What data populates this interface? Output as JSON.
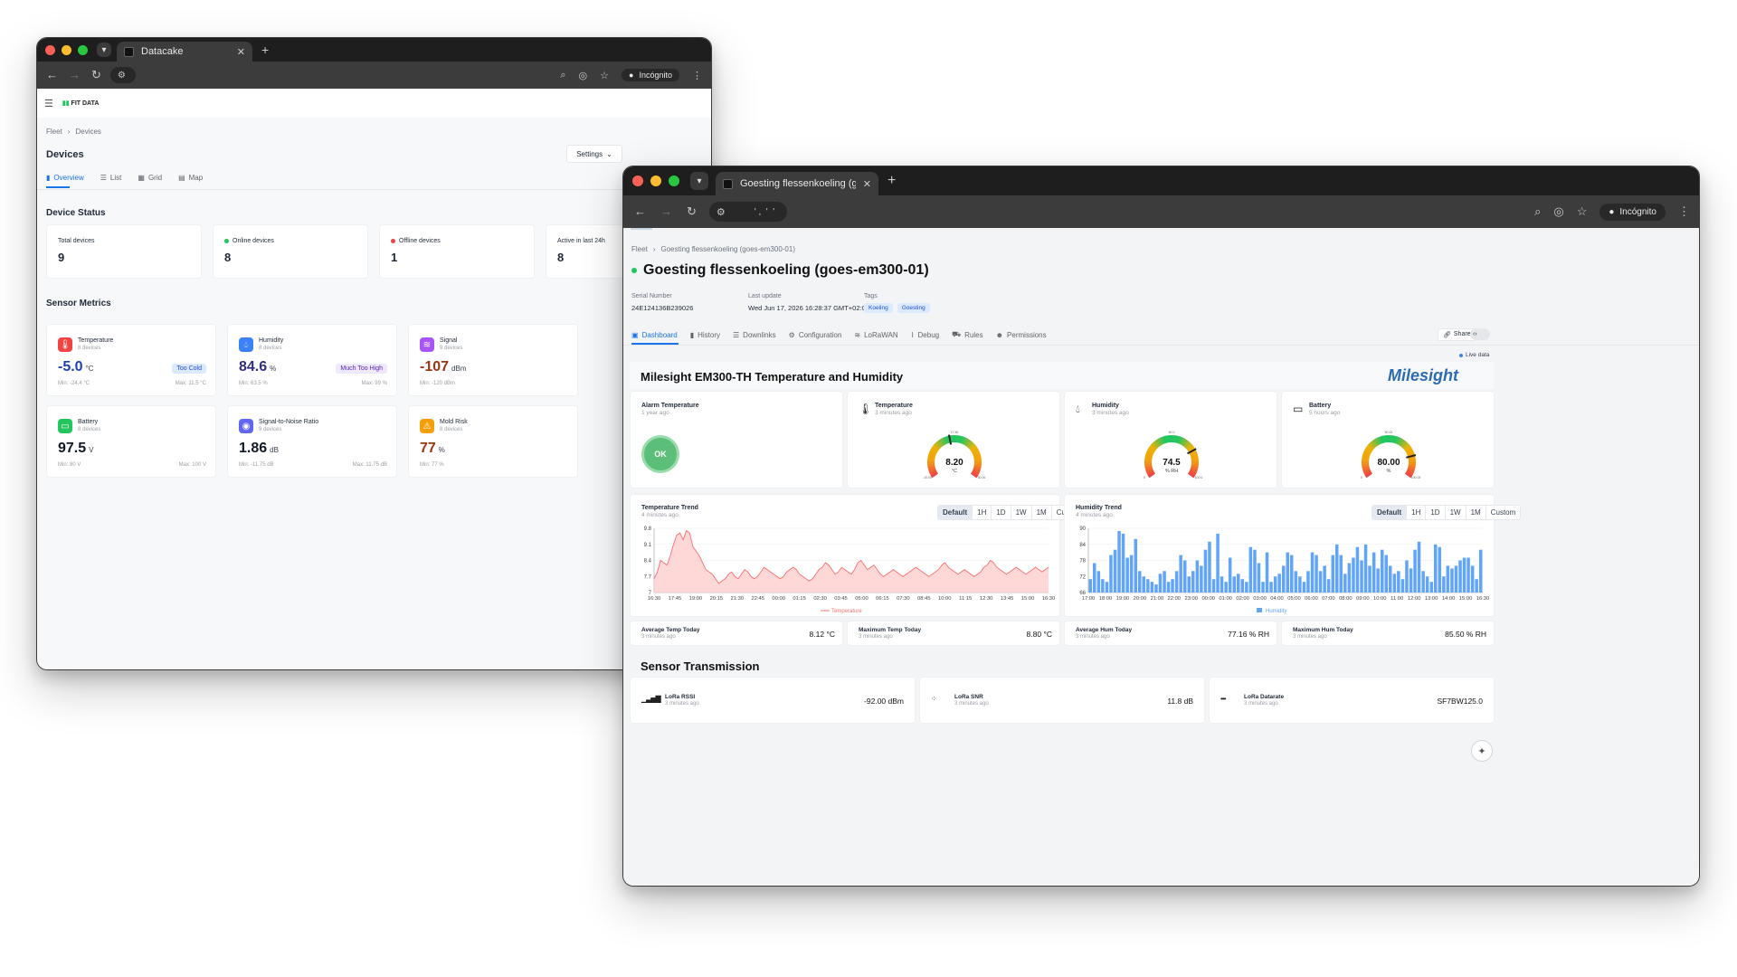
{
  "win1": {
    "tab_title": "Datacake",
    "incognito": "Incógnito",
    "brand": "FIT DATA",
    "breadcrumb": [
      "Fleet",
      "Devices"
    ],
    "page_title": "Devices",
    "settings_label": "Settings",
    "tabs": [
      "Overview",
      "List",
      "Grid",
      "Map"
    ],
    "device_status_title": "Device Status",
    "status": [
      {
        "label": "Total devices",
        "value": "9"
      },
      {
        "label": "Online devices",
        "value": "8"
      },
      {
        "label": "Offline devices",
        "value": "1"
      },
      {
        "label": "Active in last 24h",
        "value": "8"
      }
    ],
    "sensor_metrics_title": "Sensor Metrics",
    "metrics": [
      {
        "name": "Temperature",
        "devices": "8 devices",
        "value": "-5.0",
        "unit": "°C",
        "min": "Min: -24.4 °C",
        "max": "Max: 11.5 °C",
        "badge": "Too Cold",
        "color": "#ef4444",
        "value_color": "#1e40af",
        "badge_bg": "#dbeafe",
        "badge_fg": "#1d4ed8",
        "icon": "thermometer-icon"
      },
      {
        "name": "Humidity",
        "devices": "8 devices",
        "value": "84.6",
        "unit": "%",
        "min": "Min: 63.5 %",
        "max": "Max: 99 %",
        "badge": "Much Too High",
        "color": "#3b82f6",
        "value_color": "#312e81",
        "badge_bg": "#ede9fe",
        "badge_fg": "#5b21b6",
        "icon": "droplet-icon"
      },
      {
        "name": "Signal",
        "devices": "9 devices",
        "value": "-107",
        "unit": "dBm",
        "min": "Min: -120 dBm",
        "max": "",
        "badge": "",
        "color": "#a855f7",
        "value_color": "#9a3412",
        "icon": "wifi-icon"
      },
      {
        "name": "Battery",
        "devices": "8 devices",
        "value": "97.5",
        "unit": "V",
        "min": "Min: 80 V",
        "max": "Max: 100 V",
        "badge": "",
        "color": "#22c55e",
        "value_color": "#111827",
        "icon": "battery-icon"
      },
      {
        "name": "Signal-to-Noise Ratio",
        "devices": "9 devices",
        "value": "1.86",
        "unit": "dB",
        "min": "Min: -11.75 dB",
        "max": "Max: 11.75 dB",
        "badge": "",
        "color": "#6366f1",
        "value_color": "#111827",
        "icon": "radio-icon"
      },
      {
        "name": "Mold Risk",
        "devices": "8 devices",
        "value": "77",
        "unit": "%",
        "min": "Min: 77 %",
        "max": "",
        "badge": "",
        "color": "#f59e0b",
        "value_color": "#9a3412",
        "icon": "warning-icon"
      }
    ]
  },
  "win2": {
    "tab_title": "Goesting flessenkoeling (goes-em300-01)",
    "incognito": "Incógnito",
    "address_text": "' ,  '  '",
    "breadcrumb": [
      "Fleet",
      "Goesting flessenkoeling (goes-em300-01)"
    ],
    "device_title": "Goesting flessenkoeling (goes-em300-01)",
    "serial_label": "Serial Number",
    "serial_value": "24E124136B239026",
    "update_label": "Last update",
    "update_value": "Wed Jun 17, 2026 16:28:37 GMT+02:00",
    "tags_label": "Tags",
    "tags": [
      "Koeling",
      "Goesting"
    ],
    "tabs": [
      "Dashboard",
      "History",
      "Downlinks",
      "Configuration",
      "LoRaWAN",
      "Debug",
      "Rules",
      "Permissions"
    ],
    "share": "Share",
    "live": "Live data",
    "section_title": "Milesight EM300-TH Temperature and Humidity",
    "logo": "Milesight",
    "alarm": {
      "title": "Alarm Temperature",
      "time": "1 year ago",
      "value": "OK"
    },
    "gauges": [
      {
        "title": "Temperature",
        "time": "3 minutes ago",
        "value": "8.20",
        "unit": "°C",
        "min": "-10.00",
        "max": "30.00",
        "top": "17.50",
        "fraction": 0.455,
        "icon": "thermometer-icon"
      },
      {
        "title": "Humidity",
        "time": "3 minutes ago",
        "value": "74.5",
        "unit": "% RH",
        "min": "0",
        "max": "100.0",
        "top": "50.0",
        "fraction": 0.745,
        "icon": "droplet-icon"
      },
      {
        "title": "Battery",
        "time": "5 hours ago",
        "value": "80.00",
        "unit": "%",
        "min": "0",
        "max": "100.00",
        "top": "50.00",
        "fraction": 0.8,
        "icon": "battery-icon"
      }
    ],
    "range_buttons": [
      "Default",
      "1H",
      "1D",
      "1W",
      "1M",
      "Custom"
    ],
    "stats": [
      {
        "title": "Average Temp Today",
        "time": "3 minutes ago",
        "value": "8.12 °C"
      },
      {
        "title": "Maximum Temp Today",
        "time": "3 minutes ago",
        "value": "8.80 °C"
      },
      {
        "title": "Average Hum Today",
        "time": "3 minutes ago",
        "value": "77.16 % RH"
      },
      {
        "title": "Maximum Hum Today",
        "time": "3 minutes ago",
        "value": "85.50 % RH"
      }
    ],
    "transmission_title": "Sensor Transmission",
    "transmission": [
      {
        "title": "LoRa RSSI",
        "time": "3 minutes ago",
        "value": "-92.00 dBm",
        "icon": "signal-bars-icon"
      },
      {
        "title": "LoRa SNR",
        "time": "3 minutes ago",
        "value": "11.8 dB",
        "icon": "spinner-icon"
      },
      {
        "title": "LoRa Datarate",
        "time": "3 minutes ago",
        "value": "SF7BW125.0",
        "icon": "ellipsis-icon"
      }
    ]
  },
  "chart_data": [
    {
      "type": "area",
      "title": "Temperature Trend",
      "subtitle": "4 minutes ago",
      "series": [
        {
          "name": "Temperature",
          "color": "#f87171",
          "values": [
            7.6,
            7.9,
            8.4,
            8.3,
            8.2,
            8.6,
            9.1,
            9.5,
            9.6,
            9.3,
            9.7,
            9.6,
            9.0,
            8.8,
            8.6,
            8.3,
            8.0,
            7.9,
            7.8,
            7.6,
            7.4,
            7.5,
            7.6,
            7.8,
            7.9,
            7.7,
            7.6,
            7.8,
            8.0,
            7.9,
            7.7,
            7.6,
            7.7,
            7.9,
            8.1,
            8.0,
            7.9,
            7.8,
            7.7,
            7.6,
            7.7,
            7.9,
            8.0,
            8.1,
            8.0,
            7.8,
            7.7,
            7.6,
            7.5,
            7.6,
            7.8,
            8.0,
            8.1,
            8.3,
            8.2,
            8.0,
            7.8,
            7.9,
            8.1,
            8.0,
            7.9,
            7.8,
            8.0,
            8.3,
            8.4,
            8.2,
            8.0,
            8.1,
            8.2,
            8.0,
            7.8,
            7.7,
            7.8,
            7.9,
            8.0,
            7.9,
            7.8,
            7.7,
            7.8,
            7.9,
            8.0,
            8.1,
            8.0,
            7.9,
            7.8,
            7.7,
            7.8,
            7.9,
            8.0,
            8.2,
            8.3,
            8.1,
            8.0,
            7.9,
            7.8,
            7.9,
            8.0,
            7.9,
            7.8,
            7.7,
            7.8,
            7.9,
            8.1,
            8.2,
            8.4,
            8.3,
            8.1,
            8.0,
            7.9,
            7.8,
            7.9,
            8.0,
            8.1,
            8.0,
            7.9,
            7.8,
            7.9,
            8.0,
            8.1,
            8.0,
            7.9,
            8.0,
            8.1
          ]
        }
      ],
      "x_ticks": [
        "16:30",
        "17:45",
        "19:00",
        "20:15",
        "21:30",
        "22:45",
        "00:00",
        "01:15",
        "02:30",
        "03:45",
        "05:00",
        "06:15",
        "07:30",
        "08:45",
        "10:00",
        "11:15",
        "12:30",
        "13:45",
        "15:00",
        "16:30"
      ],
      "y_ticks": [
        "9.8",
        "9.1",
        "8.4",
        "7.7",
        "7"
      ],
      "ylim": [
        7,
        9.8
      ]
    },
    {
      "type": "bar",
      "title": "Humidity Trend",
      "subtitle": "4 minutes ago",
      "series": [
        {
          "name": "Humidity",
          "color": "#60a5fa",
          "values": [
            71,
            77,
            74,
            71,
            70,
            80,
            82,
            89,
            88,
            79,
            80,
            86,
            74,
            72,
            71,
            70,
            69,
            73,
            74,
            70,
            71,
            74,
            80,
            78,
            72,
            74,
            78,
            76,
            82,
            85,
            71,
            88,
            72,
            70,
            79,
            72,
            73,
            71,
            70,
            83,
            82,
            77,
            70,
            81,
            70,
            72,
            73,
            76,
            81,
            80,
            74,
            72,
            70,
            74,
            81,
            80,
            74,
            76,
            71,
            80,
            84,
            80,
            73,
            77,
            79,
            83,
            78,
            84,
            76,
            81,
            75,
            82,
            80,
            76,
            73,
            74,
            71,
            78,
            75,
            82,
            85,
            74,
            72,
            70,
            84,
            83,
            72,
            76,
            75,
            76,
            78,
            79,
            79,
            76,
            71,
            82
          ]
        }
      ],
      "x_ticks": [
        "17:00",
        "18:00",
        "19:00",
        "20:00",
        "21:00",
        "22:00",
        "23:00",
        "00:00",
        "01:00",
        "02:00",
        "03:00",
        "04:00",
        "05:00",
        "06:00",
        "07:00",
        "08:00",
        "09:00",
        "10:00",
        "11:00",
        "12:00",
        "13:00",
        "14:00",
        "15:00",
        "16:30"
      ],
      "y_ticks": [
        "90",
        "84",
        "78",
        "72",
        "66"
      ],
      "ylim": [
        66,
        90
      ]
    }
  ]
}
